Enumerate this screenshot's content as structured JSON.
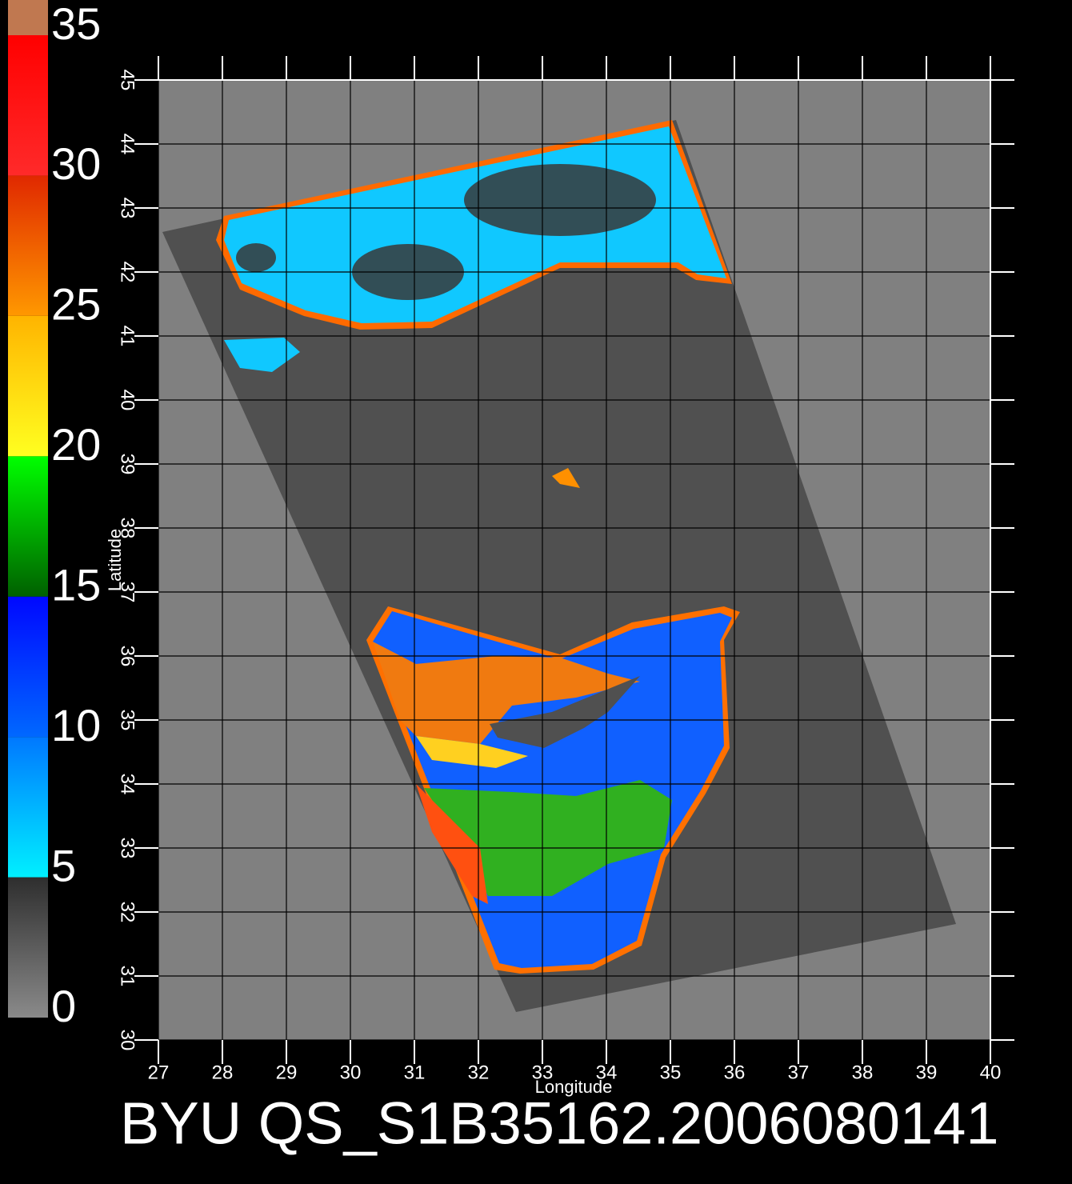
{
  "chart_data": {
    "type": "map",
    "title": "BYU QS_S1B35162.2006080141",
    "x_label": "Longitude",
    "y_label": "Latitude",
    "xlim": [
      27,
      40
    ],
    "ylim": [
      30,
      45
    ],
    "xticks": [
      27,
      28,
      29,
      30,
      31,
      32,
      33,
      34,
      35,
      36,
      37,
      38,
      39,
      40
    ],
    "yticks": [
      30,
      31,
      32,
      33,
      34,
      35,
      36,
      37,
      38,
      39,
      40,
      41,
      42,
      43,
      44,
      45
    ],
    "grid": true,
    "colorbar": {
      "lim": [
        0,
        35
      ],
      "ticks": [
        0,
        5,
        10,
        15,
        20,
        25,
        30,
        35
      ],
      "colors": [
        [
          "#8a8a8a",
          "#2e2e2e"
        ],
        [
          "#00f0ff",
          "#0078ff"
        ],
        [
          "#0068ff",
          "#0008ff"
        ],
        [
          "#006000",
          "#00ff00"
        ],
        [
          "#ffff20",
          "#ffb400"
        ],
        [
          "#ff9800",
          "#e02800"
        ],
        [
          "#ff2a2a",
          "#ff0000"
        ]
      ]
    }
  }
}
